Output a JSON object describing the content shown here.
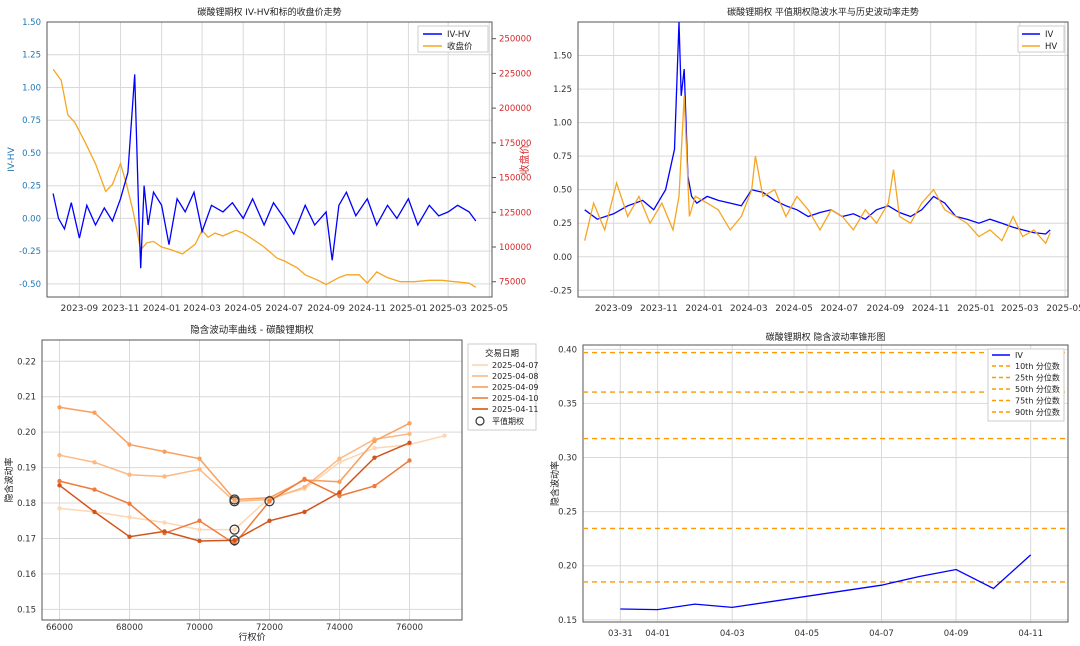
{
  "colors": {
    "blue": "#0000ff",
    "orange": "#f5a623",
    "grid": "#d9d9d9",
    "frame": "#555555",
    "iv_orange": "#ff9900"
  },
  "chart_data": [
    {
      "type": "line",
      "title": "碳酸锂期权 IV-HV和标的收盘价走势",
      "ylabel": "IV-HV",
      "y2label": "收盘价",
      "ylim": [
        -0.6,
        1.5
      ],
      "y2lim": [
        64000,
        262000
      ],
      "xlim": [
        "2023-07-15",
        "2025-05-05"
      ],
      "xticks": [
        "2023-09",
        "2023-11",
        "2024-01",
        "2024-03",
        "2024-05",
        "2024-07",
        "2024-09",
        "2024-11",
        "2025-01",
        "2025-03",
        "2025-05"
      ],
      "yticks": [
        "-0.50",
        "-0.25",
        "0.00",
        "0.25",
        "0.50",
        "0.75",
        "1.00",
        "1.25",
        "1.50"
      ],
      "y2ticks": [
        "75000",
        "100000",
        "125000",
        "150000",
        "175000",
        "200000",
        "225000",
        "250000"
      ],
      "legend": "top-right",
      "series": [
        {
          "name": "IV-HV",
          "axis": "left",
          "color": "#0000ff",
          "x": [
            "2023-07-24",
            "2023-08-01",
            "2023-08-10",
            "2023-08-20",
            "2023-09-01",
            "2023-09-12",
            "2023-09-25",
            "2023-10-08",
            "2023-10-20",
            "2023-11-01",
            "2023-11-12",
            "2023-11-22",
            "2023-11-28",
            "2023-12-01",
            "2023-12-06",
            "2023-12-12",
            "2023-12-20",
            "2024-01-01",
            "2024-01-12",
            "2024-01-24",
            "2024-02-05",
            "2024-02-18",
            "2024-03-01",
            "2024-03-15",
            "2024-04-01",
            "2024-04-15",
            "2024-05-01",
            "2024-05-15",
            "2024-06-01",
            "2024-06-15",
            "2024-07-01",
            "2024-07-15",
            "2024-08-01",
            "2024-08-15",
            "2024-09-01",
            "2024-09-10",
            "2024-09-20",
            "2024-10-01",
            "2024-10-15",
            "2024-11-01",
            "2024-11-15",
            "2024-12-01",
            "2024-12-15",
            "2025-01-01",
            "2025-01-15",
            "2025-02-01",
            "2025-02-15",
            "2025-03-01",
            "2025-03-15",
            "2025-04-01",
            "2025-04-11"
          ],
          "y": [
            0.19,
            0.0,
            -0.08,
            0.12,
            -0.15,
            0.1,
            -0.05,
            0.08,
            -0.02,
            0.15,
            0.35,
            1.1,
            0.05,
            -0.38,
            0.25,
            -0.05,
            0.2,
            0.1,
            -0.2,
            0.15,
            0.05,
            0.2,
            -0.1,
            0.1,
            0.05,
            0.12,
            0.0,
            0.15,
            -0.05,
            0.12,
            0.0,
            -0.12,
            0.1,
            -0.05,
            0.05,
            -0.32,
            0.1,
            0.2,
            0.02,
            0.15,
            -0.05,
            0.1,
            0.0,
            0.15,
            -0.05,
            0.1,
            0.02,
            0.05,
            0.1,
            0.05,
            -0.02
          ]
        },
        {
          "name": "收盘价",
          "axis": "right",
          "color": "#f5a623",
          "x": [
            "2023-07-24",
            "2023-08-05",
            "2023-08-15",
            "2023-08-25",
            "2023-09-10",
            "2023-09-25",
            "2023-10-10",
            "2023-10-20",
            "2023-11-01",
            "2023-11-10",
            "2023-11-20",
            "2023-12-01",
            "2023-12-10",
            "2023-12-20",
            "2024-01-01",
            "2024-01-15",
            "2024-02-01",
            "2024-02-20",
            "2024-03-01",
            "2024-03-10",
            "2024-03-20",
            "2024-04-01",
            "2024-04-20",
            "2024-05-01",
            "2024-05-20",
            "2024-06-01",
            "2024-06-20",
            "2024-07-01",
            "2024-07-20",
            "2024-08-01",
            "2024-08-20",
            "2024-09-01",
            "2024-09-20",
            "2024-10-01",
            "2024-10-20",
            "2024-11-01",
            "2024-11-15",
            "2024-12-01",
            "2024-12-20",
            "2025-01-10",
            "2025-02-01",
            "2025-02-20",
            "2025-03-10",
            "2025-04-01",
            "2025-04-11"
          ],
          "y": [
            228000,
            220000,
            195000,
            190000,
            175000,
            160000,
            140000,
            145000,
            160000,
            145000,
            125000,
            98000,
            103000,
            104000,
            100000,
            98000,
            95000,
            102000,
            112000,
            107000,
            110000,
            108000,
            112000,
            110000,
            104000,
            100000,
            92000,
            90000,
            85000,
            80000,
            76000,
            73000,
            78000,
            80000,
            80000,
            74000,
            82000,
            78000,
            75000,
            75000,
            76000,
            76000,
            75000,
            74000,
            71000
          ]
        }
      ]
    },
    {
      "type": "line",
      "title": "碳酸锂期权 平值期权隐波水平与历史波动率走势",
      "ylim": [
        -0.3,
        1.75
      ],
      "xlim": [
        "2023-07-15",
        "2025-05-05"
      ],
      "xticks": [
        "2023-09",
        "2023-11",
        "2024-01",
        "2024-03",
        "2024-05",
        "2024-07",
        "2024-09",
        "2024-11",
        "2025-01",
        "2025-03",
        "2025-05"
      ],
      "yticks": [
        "-0.25",
        "0.00",
        "0.25",
        "0.50",
        "0.75",
        "1.00",
        "1.25",
        "1.50"
      ],
      "legend": "top-right",
      "series": [
        {
          "name": "IV",
          "color": "#0000ff",
          "x": [
            "2023-07-24",
            "2023-08-10",
            "2023-09-01",
            "2023-09-20",
            "2023-10-10",
            "2023-10-25",
            "2023-11-10",
            "2023-11-22",
            "2023-11-28",
            "2023-12-01",
            "2023-12-05",
            "2023-12-10",
            "2023-12-15",
            "2023-12-22",
            "2024-01-05",
            "2024-01-20",
            "2024-02-05",
            "2024-02-20",
            "2024-03-05",
            "2024-03-20",
            "2024-04-05",
            "2024-04-20",
            "2024-05-05",
            "2024-05-20",
            "2024-06-05",
            "2024-06-20",
            "2024-07-05",
            "2024-07-20",
            "2024-08-05",
            "2024-08-20",
            "2024-09-05",
            "2024-09-20",
            "2024-10-05",
            "2024-10-20",
            "2024-11-05",
            "2024-11-20",
            "2024-12-05",
            "2024-12-20",
            "2025-01-05",
            "2025-01-20",
            "2025-02-05",
            "2025-02-20",
            "2025-03-05",
            "2025-03-20",
            "2025-04-05",
            "2025-04-11"
          ],
          "y": [
            0.35,
            0.28,
            0.32,
            0.38,
            0.42,
            0.35,
            0.5,
            0.8,
            1.75,
            1.2,
            1.4,
            0.6,
            0.45,
            0.4,
            0.45,
            0.42,
            0.4,
            0.38,
            0.5,
            0.48,
            0.42,
            0.38,
            0.35,
            0.3,
            0.33,
            0.35,
            0.3,
            0.32,
            0.28,
            0.35,
            0.38,
            0.33,
            0.3,
            0.35,
            0.45,
            0.4,
            0.3,
            0.28,
            0.25,
            0.28,
            0.25,
            0.22,
            0.2,
            0.18,
            0.17,
            0.2
          ]
        },
        {
          "name": "HV",
          "color": "#f5a623",
          "x": [
            "2023-07-24",
            "2023-08-05",
            "2023-08-20",
            "2023-09-05",
            "2023-09-20",
            "2023-10-05",
            "2023-10-20",
            "2023-11-05",
            "2023-11-20",
            "2023-11-28",
            "2023-12-05",
            "2023-12-12",
            "2023-12-20",
            "2024-01-05",
            "2024-01-20",
            "2024-02-05",
            "2024-02-20",
            "2024-03-05",
            "2024-03-10",
            "2024-03-20",
            "2024-04-05",
            "2024-04-20",
            "2024-05-05",
            "2024-05-20",
            "2024-06-05",
            "2024-06-20",
            "2024-07-05",
            "2024-07-20",
            "2024-08-05",
            "2024-08-20",
            "2024-09-05",
            "2024-09-12",
            "2024-09-20",
            "2024-10-05",
            "2024-10-20",
            "2024-11-05",
            "2024-11-20",
            "2024-12-05",
            "2024-12-20",
            "2025-01-05",
            "2025-01-20",
            "2025-02-05",
            "2025-02-20",
            "2025-03-05",
            "2025-03-20",
            "2025-04-05",
            "2025-04-11"
          ],
          "y": [
            0.12,
            0.4,
            0.2,
            0.55,
            0.3,
            0.45,
            0.25,
            0.4,
            0.2,
            0.45,
            1.2,
            0.3,
            0.45,
            0.4,
            0.35,
            0.2,
            0.3,
            0.5,
            0.75,
            0.45,
            0.5,
            0.3,
            0.45,
            0.35,
            0.2,
            0.35,
            0.3,
            0.2,
            0.35,
            0.25,
            0.4,
            0.65,
            0.3,
            0.25,
            0.4,
            0.5,
            0.35,
            0.3,
            0.25,
            0.15,
            0.2,
            0.12,
            0.3,
            0.15,
            0.2,
            0.1,
            0.18
          ]
        }
      ]
    },
    {
      "type": "line",
      "title": "隐含波动率曲线 - 碳酸锂期权",
      "xlabel": "行权价",
      "ylabel": "隐含波动率",
      "xlim": [
        65500,
        77500
      ],
      "ylim": [
        0.147,
        0.226
      ],
      "xticks": [
        "66000",
        "68000",
        "70000",
        "72000",
        "74000",
        "76000"
      ],
      "yticks": [
        "0.15",
        "0.16",
        "0.17",
        "0.18",
        "0.19",
        "0.20",
        "0.21",
        "0.22"
      ],
      "legend_title": "交易日期",
      "legend": "top-right",
      "atm_label": "平值期权",
      "series": [
        {
          "name": "2025-04-07",
          "color": "#fdd6b3",
          "x": [
            66000,
            67000,
            68000,
            69000,
            70000,
            71000,
            72000,
            73000,
            74000,
            75000,
            76000,
            77000
          ],
          "y": [
            0.1785,
            0.1775,
            0.176,
            0.1745,
            0.1725,
            0.1725,
            0.1815,
            0.184,
            0.1915,
            0.1955,
            0.1965,
            0.199
          ],
          "atm": [
            71000,
            0.1725
          ]
        },
        {
          "name": "2025-04-08",
          "color": "#fdb882",
          "x": [
            66000,
            67000,
            68000,
            69000,
            70000,
            71000,
            72000,
            73000,
            74000,
            75000,
            76000
          ],
          "y": [
            0.1935,
            0.1915,
            0.188,
            0.1875,
            0.1895,
            0.1805,
            0.181,
            0.1845,
            0.1925,
            0.198,
            0.1995
          ],
          "atm": [
            71000,
            0.1805
          ]
        },
        {
          "name": "2025-04-09",
          "color": "#f9a05f",
          "x": [
            66000,
            67000,
            68000,
            69000,
            70000,
            71000,
            72000,
            73000,
            74000,
            75000,
            76000
          ],
          "y": [
            0.207,
            0.2055,
            0.1965,
            0.1945,
            0.1925,
            0.181,
            0.1815,
            0.1865,
            0.186,
            0.1975,
            0.2025
          ],
          "atm": [
            71000,
            0.181
          ]
        },
        {
          "name": "2025-04-10",
          "color": "#ef7b3a",
          "x": [
            66000,
            67000,
            68000,
            69000,
            70000,
            71000,
            72000,
            73000,
            74000,
            75000,
            76000
          ],
          "y": [
            0.1862,
            0.1838,
            0.1798,
            0.1715,
            0.175,
            0.1685,
            0.1805,
            0.1868,
            0.182,
            0.1848,
            0.192
          ],
          "atm": [
            72000,
            0.1805
          ]
        },
        {
          "name": "2025-04-11",
          "color": "#d2541a",
          "x": [
            66000,
            67000,
            68000,
            69000,
            70000,
            71000,
            72000,
            73000,
            74000,
            75000,
            76000
          ],
          "y": [
            0.185,
            0.1775,
            0.1705,
            0.172,
            0.1693,
            0.1695,
            0.175,
            0.1775,
            0.183,
            0.1928,
            0.197
          ],
          "atm": [
            71000,
            0.1695
          ]
        }
      ]
    },
    {
      "type": "line",
      "title": "碳酸锂期权 隐含波动率锥形图",
      "ylabel": "隐含波动率",
      "ylim": [
        0.148,
        0.404
      ],
      "xlim": [
        "2025-03-30",
        "2025-04-12"
      ],
      "xticks": [
        "03-31",
        "04-01",
        "04-03",
        "04-05",
        "04-07",
        "04-09",
        "04-11"
      ],
      "yticks": [
        "0.15",
        "0.20",
        "0.25",
        "0.30",
        "0.35",
        "0.40"
      ],
      "legend": "top-right",
      "series": [
        {
          "name": "IV",
          "color": "#0000ff",
          "x": [
            "2025-03-31",
            "2025-04-01",
            "2025-04-02",
            "2025-04-03",
            "2025-04-07",
            "2025-04-08",
            "2025-04-09",
            "2025-04-10",
            "2025-04-11"
          ],
          "y": [
            0.16,
            0.1595,
            0.1645,
            0.1615,
            0.182,
            0.19,
            0.1965,
            0.179,
            0.21
          ]
        }
      ],
      "percentiles": [
        {
          "name": "10th 分位数",
          "value": 0.185
        },
        {
          "name": "25th 分位数",
          "value": 0.2345
        },
        {
          "name": "50th 分位数",
          "value": 0.3175
        },
        {
          "name": "75th 分位数",
          "value": 0.3605
        },
        {
          "name": "90th 分位数",
          "value": 0.397
        }
      ]
    }
  ]
}
